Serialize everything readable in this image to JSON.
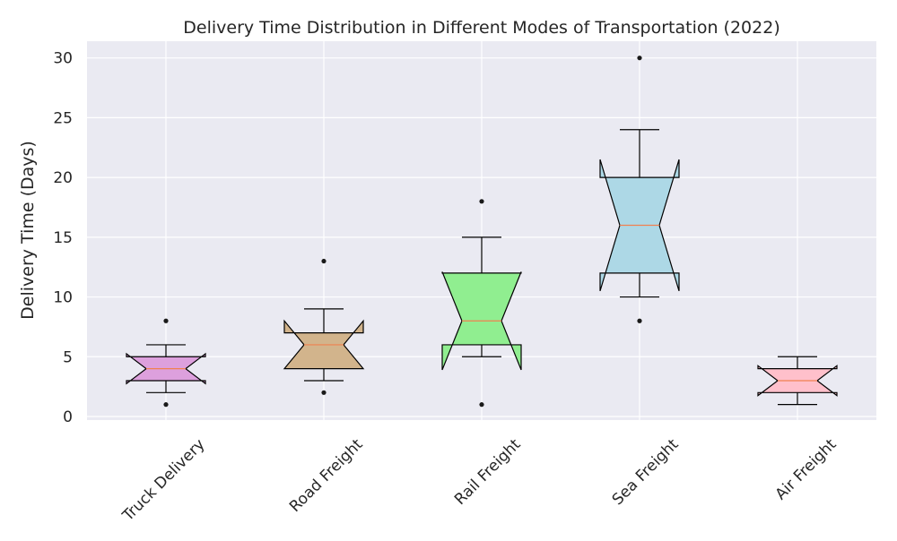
{
  "chart_data": {
    "type": "box",
    "title": "Delivery Time Distribution in Different Modes of Transportation (2022)",
    "xlabel": "",
    "ylabel": "Delivery Time (Days)",
    "ylim": [
      -0.3,
      31.4
    ],
    "yticks": [
      0,
      5,
      10,
      15,
      20,
      25,
      30
    ],
    "grid": true,
    "notched": true,
    "categories": [
      "Truck Delivery",
      "Road Freight",
      "Rail Freight",
      "Sea Freight",
      "Air Freight"
    ],
    "boxes": [
      {
        "category": "Truck Delivery",
        "whisker_low": 2,
        "q1": 3,
        "median": 4,
        "q3": 5,
        "whisker_high": 6,
        "notch_low": 2.75,
        "notch_high": 5.25,
        "outliers": [
          1,
          8
        ],
        "color": "#dda0dd"
      },
      {
        "category": "Road Freight",
        "whisker_low": 3,
        "q1": 4,
        "median": 6,
        "q3": 7,
        "whisker_high": 9,
        "notch_low": 4.0,
        "notch_high": 8.0,
        "outliers": [
          2,
          13
        ],
        "color": "#d2b48c"
      },
      {
        "category": "Rail Freight",
        "whisker_low": 5,
        "q1": 6,
        "median": 8,
        "q3": 12,
        "whisker_high": 15,
        "notch_low": 3.9,
        "notch_high": 12.1,
        "outliers": [
          1,
          18
        ],
        "color": "#90ee90"
      },
      {
        "category": "Sea Freight",
        "whisker_low": 10,
        "q1": 12,
        "median": 16,
        "q3": 20,
        "whisker_high": 24,
        "notch_low": 10.5,
        "notch_high": 21.5,
        "outliers": [
          8,
          30
        ],
        "color": "#add8e6"
      },
      {
        "category": "Air Freight",
        "whisker_low": 1,
        "q1": 2,
        "median": 3,
        "q3": 4,
        "whisker_high": 5,
        "notch_low": 1.75,
        "notch_high": 4.25,
        "outliers": [],
        "color": "#ffc0cb"
      }
    ],
    "colors": {
      "plot_background": "#eaeaf2",
      "grid": "#ffffff",
      "median_line": "#f08050",
      "outline": "#000000",
      "outlier": "#1a1a1a"
    }
  }
}
